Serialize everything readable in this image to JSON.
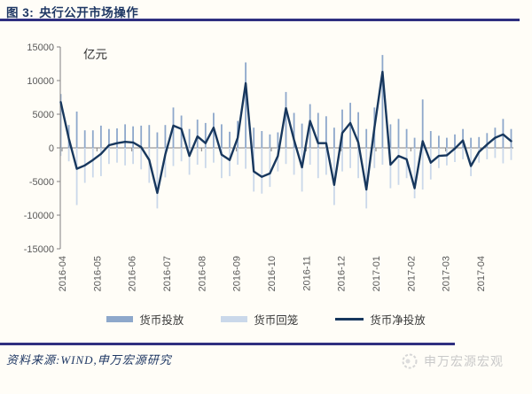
{
  "figure": {
    "caption_prefix": "图 3:",
    "caption_title": "央行公开市场操作"
  },
  "chart_data": {
    "type": "combo-bar-line",
    "title": "央行公开市场操作",
    "unit_label": "亿元",
    "x_unit": "week",
    "x_tick_labels": [
      "2016-04",
      "2016-05",
      "2016-06",
      "2016-07",
      "2016-08",
      "2016-09",
      "2016-10",
      "2016-11",
      "2016-12",
      "2017-01",
      "2017-02",
      "2017-03",
      "2017-04"
    ],
    "y_ticks": [
      "15000",
      "10000",
      "5000",
      "0",
      "-5000",
      "-10000",
      "-15000"
    ],
    "ylim": [
      -15000,
      15000
    ],
    "grid": "zero-line-only",
    "legend_position": "bottom",
    "axis_color": "#808080",
    "tick_text_color": "#595959",
    "series": [
      {
        "name": "货币投放",
        "type": "bar",
        "color": "#8ea8cb",
        "values": [
          8000,
          3400,
          5400,
          2600,
          2600,
          3300,
          2800,
          2900,
          3500,
          3200,
          3300,
          3400,
          2300,
          3400,
          6000,
          4800,
          2800,
          4200,
          3700,
          5200,
          3500,
          2400,
          4000,
          12700,
          3000,
          2500,
          2000,
          2300,
          8300,
          5200,
          3600,
          6500,
          5200,
          4700,
          3000,
          5700,
          6700,
          5300,
          2800,
          6000,
          13800,
          3500,
          4300,
          2800,
          1500,
          7200,
          2500,
          1800,
          1500,
          2000,
          2800,
          1500,
          1600,
          2200,
          3000,
          4300,
          2800
        ]
      },
      {
        "name": "货币回笼",
        "type": "bar",
        "color": "#cad8ea",
        "values": [
          -1200,
          -2000,
          -8500,
          -5200,
          -4400,
          -4200,
          -2400,
          -2200,
          -2600,
          -2400,
          -3200,
          -5200,
          -9000,
          -4400,
          -2700,
          -2000,
          -4000,
          -2500,
          -3000,
          -2200,
          -4500,
          -4200,
          -2500,
          -3100,
          -6500,
          -6800,
          -5800,
          -3500,
          -2400,
          -4000,
          -6500,
          -2500,
          -4500,
          -4000,
          -8500,
          -3500,
          -3000,
          -4500,
          -9000,
          -3000,
          -2500,
          -6000,
          -5500,
          -4500,
          -7500,
          -6200,
          -4700,
          -3000,
          -2600,
          -2100,
          -1700,
          -4200,
          -2200,
          -1700,
          -1500,
          -2300,
          -1800
        ]
      },
      {
        "name": "货币净投放",
        "type": "line",
        "color": "#17375d",
        "values": [
          6800,
          1400,
          -3100,
          -2600,
          -1800,
          -900,
          400,
          700,
          900,
          800,
          100,
          -1800,
          -6700,
          -1000,
          3300,
          2800,
          -1200,
          1700,
          700,
          3000,
          -1000,
          -1800,
          1500,
          9600,
          -3500,
          -4300,
          -3800,
          -1200,
          5900,
          1200,
          -2900,
          4000,
          700,
          700,
          -5500,
          2200,
          3700,
          800,
          -6200,
          3000,
          11300,
          -2500,
          -1200,
          -1700,
          -6000,
          1000,
          -2200,
          -1200,
          -1100,
          -100,
          1100,
          -2700,
          -600,
          500,
          1500,
          2000,
          1000
        ]
      }
    ]
  },
  "footer": {
    "source_text": "资料来源:WIND,申万宏源研究"
  },
  "watermark": {
    "text": "申万宏源宏观"
  },
  "colors": {
    "title_navy": "#1f3864",
    "rule_navy": "#2f2f80",
    "watermark_gray": "#c9c9c9",
    "background": "#fffdf7"
  }
}
